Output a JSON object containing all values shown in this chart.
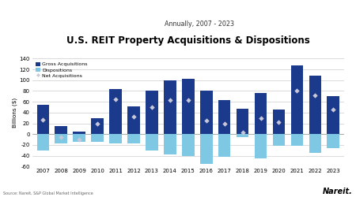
{
  "title": "U.S. REIT Property Acquisitions & Dispositions",
  "subtitle": "Annually, 2007 - 2023",
  "ylabel": "Billions ($)",
  "source": "Source: Nareit, S&P Global Market Intelligence",
  "logo": "Nareit.",
  "years": [
    2007,
    2008,
    2009,
    2010,
    2011,
    2012,
    2013,
    2014,
    2015,
    2016,
    2017,
    2018,
    2019,
    2020,
    2021,
    2022,
    2023
  ],
  "gross_acquisitions": [
    55,
    15,
    5,
    30,
    83,
    52,
    81,
    100,
    103,
    80,
    63,
    47,
    76,
    45,
    127,
    108,
    70
  ],
  "dispositions": [
    -30,
    -18,
    -15,
    -14,
    -18,
    -18,
    -30,
    -38,
    -40,
    -55,
    -42,
    -5,
    -45,
    -22,
    -22,
    -35,
    -26
  ],
  "net_acquisitions": [
    27,
    -5,
    -10,
    19,
    65,
    32,
    50,
    63,
    63,
    25,
    20,
    3,
    30,
    22,
    80,
    72,
    46
  ],
  "bar_color_gross": "#1b3a8c",
  "bar_color_dispositions": "#7ec8e3",
  "marker_color": "#c8c8d8",
  "background_color": "#ffffff",
  "ylim": [
    -60,
    140
  ],
  "yticks": [
    -60,
    -40,
    -20,
    0,
    20,
    40,
    60,
    80,
    100,
    120,
    140
  ]
}
